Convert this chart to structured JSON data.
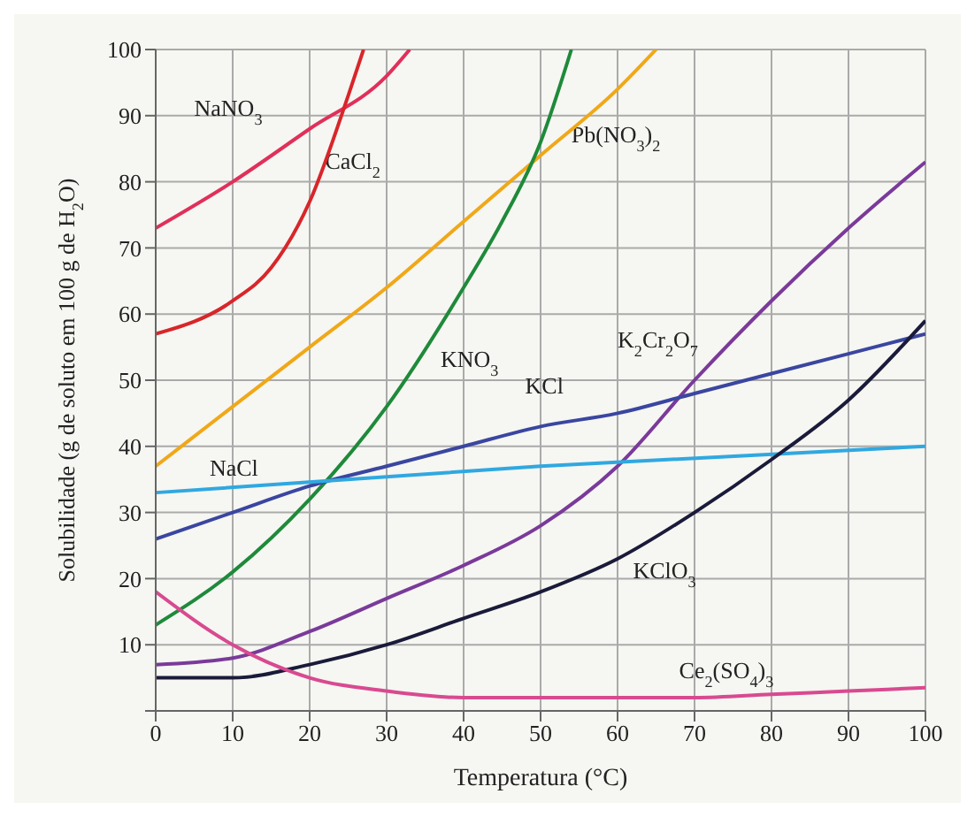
{
  "chart_data": {
    "type": "line",
    "xlabel": "Temperatura (°C)",
    "ylabel": "Solubilidade (g de soluto em 100 g de H$_{2}$O)",
    "xlim": [
      0,
      100
    ],
    "xticks": [
      0,
      10,
      20,
      30,
      40,
      50,
      60,
      70,
      80,
      90,
      100
    ],
    "ylim": [
      0,
      100
    ],
    "yticks": [
      {
        "value": 0,
        "label": null
      },
      10,
      20,
      30,
      40,
      50,
      60,
      70,
      80,
      90,
      100
    ],
    "grid": true,
    "marker": "none",
    "line_style": "solid",
    "series": [
      {
        "name": "NaNO$_{3}$",
        "color": "#e0305a",
        "x": [
          0,
          10,
          20,
          30,
          33
        ],
        "values": [
          73,
          80,
          88,
          96,
          100
        ]
      },
      {
        "name": "CaCl$_{2}$",
        "color": "#d8262a",
        "x": [
          0,
          10,
          15,
          20,
          25,
          27
        ],
        "values": [
          57,
          62,
          67,
          77,
          93,
          100
        ]
      },
      {
        "name": "Pb(NO$_{3}$)$_{2}$",
        "color": "#f0a818",
        "x": [
          0,
          10,
          20,
          30,
          40,
          50,
          60,
          65
        ],
        "values": [
          37,
          46,
          55,
          64,
          74,
          84,
          94,
          100
        ]
      },
      {
        "name": "KNO$_{3}$",
        "color": "#1e8a3a",
        "x": [
          0,
          10,
          20,
          30,
          40,
          45,
          50,
          54
        ],
        "values": [
          13,
          21,
          32,
          46,
          64,
          74,
          86,
          100
        ]
      },
      {
        "name": "K$_{2}$Cr$_{2}$O$_{7}$",
        "color": "#7a3a9a",
        "x": [
          0,
          10,
          20,
          30,
          40,
          50,
          60,
          70,
          80,
          90,
          100
        ],
        "values": [
          7,
          8,
          12,
          17,
          22,
          28,
          37,
          50,
          62,
          73,
          83
        ]
      },
      {
        "name": "KCl",
        "color": "#3a46a0",
        "x": [
          0,
          10,
          20,
          30,
          40,
          50,
          60,
          70,
          80,
          90,
          100
        ],
        "values": [
          26,
          30,
          34,
          37,
          40,
          43,
          45,
          48,
          51,
          54,
          57
        ]
      },
      {
        "name": "NaCl",
        "color": "#30a8e0",
        "x": [
          0,
          50,
          100
        ],
        "values": [
          33,
          37,
          40
        ]
      },
      {
        "name": "KClO$_{3}$",
        "color": "#1a1a3a",
        "x": [
          0,
          10,
          20,
          30,
          40,
          50,
          60,
          70,
          80,
          90,
          100
        ],
        "values": [
          5,
          5,
          7,
          10,
          14,
          18,
          23,
          30,
          38,
          47,
          59
        ]
      },
      {
        "name": "Ce$_{2}$(SO$_{4}$)$_{3}$",
        "color": "#d84a90",
        "x": [
          0,
          10,
          20,
          30,
          40,
          50,
          60,
          70,
          80,
          90,
          100
        ],
        "values": [
          18,
          10,
          5,
          3,
          2,
          2,
          2,
          2,
          2.5,
          3,
          3.5
        ]
      }
    ]
  }
}
